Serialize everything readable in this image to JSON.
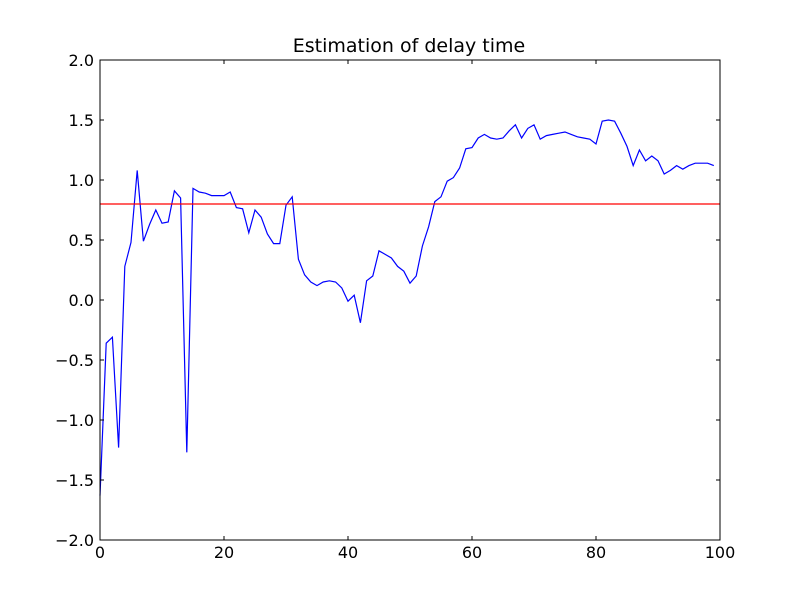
{
  "chart_data": {
    "type": "line",
    "title": "Estimation of delay time",
    "xlabel": "",
    "ylabel": "",
    "xlim": [
      0,
      100
    ],
    "ylim": [
      -2.0,
      2.0
    ],
    "x_ticks": [
      0,
      20,
      40,
      60,
      80,
      100
    ],
    "x_tick_labels": [
      "0",
      "20",
      "40",
      "60",
      "80",
      "100"
    ],
    "y_ticks": [
      -2.0,
      -1.5,
      -1.0,
      -0.5,
      0.0,
      0.5,
      1.0,
      1.5,
      2.0
    ],
    "y_tick_labels": [
      "−2.0",
      "−1.5",
      "−1.0",
      "−0.5",
      "0.0",
      "0.5",
      "1.0",
      "1.5",
      "2.0"
    ],
    "grid": false,
    "series": [
      {
        "color": "#0000ff",
        "x": [
          0,
          1,
          2,
          3,
          4,
          5,
          6,
          7,
          8,
          9,
          10,
          11,
          12,
          13,
          14,
          15,
          16,
          17,
          18,
          19,
          20,
          21,
          22,
          23,
          24,
          25,
          26,
          27,
          28,
          29,
          30,
          31,
          32,
          33,
          34,
          35,
          36,
          37,
          38,
          39,
          40,
          41,
          42,
          43,
          44,
          45,
          46,
          47,
          48,
          49,
          50,
          51,
          52,
          53,
          54,
          55,
          56,
          57,
          58,
          59,
          60,
          61,
          62,
          63,
          64,
          65,
          66,
          67,
          68,
          69,
          70,
          71,
          72,
          73,
          74,
          75,
          76,
          77,
          78,
          79,
          80,
          81,
          82,
          83,
          84,
          85,
          86,
          87,
          88,
          89,
          90,
          91,
          92,
          93,
          94,
          95,
          96,
          97,
          98,
          99
        ],
        "y": [
          -1.63,
          -0.36,
          -0.31,
          -1.23,
          0.28,
          0.48,
          1.08,
          0.49,
          0.63,
          0.75,
          0.64,
          0.65,
          0.91,
          0.85,
          -1.27,
          0.93,
          0.9,
          0.89,
          0.87,
          0.87,
          0.87,
          0.9,
          0.77,
          0.76,
          0.56,
          0.75,
          0.69,
          0.55,
          0.47,
          0.47,
          0.79,
          0.86,
          0.34,
          0.21,
          0.15,
          0.12,
          0.15,
          0.16,
          0.15,
          0.1,
          -0.01,
          0.04,
          -0.19,
          0.16,
          0.2,
          0.41,
          0.38,
          0.35,
          0.28,
          0.24,
          0.14,
          0.2,
          0.45,
          0.61,
          0.82,
          0.86,
          0.99,
          1.02,
          1.1,
          1.26,
          1.27,
          1.35,
          1.38,
          1.35,
          1.34,
          1.35,
          1.41,
          1.46,
          1.35,
          1.43,
          1.46,
          1.34,
          1.37,
          1.38,
          1.39,
          1.4,
          1.38,
          1.36,
          1.35,
          1.34,
          1.3,
          1.49,
          1.5,
          1.49,
          1.39,
          1.28,
          1.12,
          1.25,
          1.16,
          1.2,
          1.16,
          1.05,
          1.08,
          1.12,
          1.09,
          1.12,
          1.14,
          1.14,
          1.14,
          1.12
        ]
      },
      {
        "color": "#ff0000",
        "x": [
          0,
          100
        ],
        "y": [
          0.8,
          0.8
        ]
      }
    ]
  }
}
